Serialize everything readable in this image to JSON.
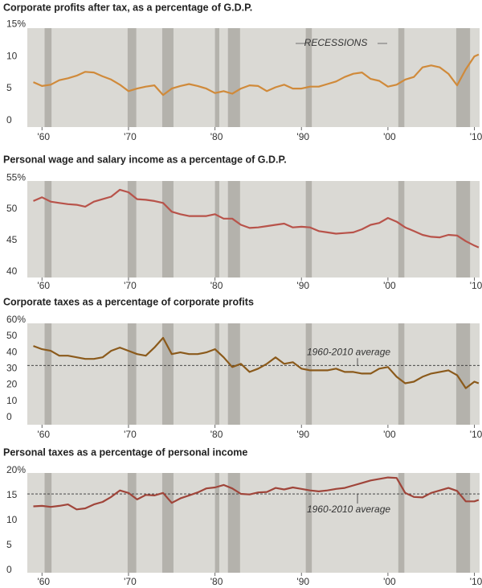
{
  "chart_data": [
    {
      "type": "line",
      "title": "Corporate profits after tax, as a percentage of G.D.P.",
      "annotation": "RECESSIONS",
      "x": [
        1959,
        1960,
        1961,
        1962,
        1963,
        1964,
        1965,
        1966,
        1967,
        1968,
        1969,
        1970,
        1971,
        1972,
        1973,
        1974,
        1975,
        1976,
        1977,
        1978,
        1979,
        1980,
        1981,
        1982,
        1983,
        1984,
        1985,
        1986,
        1987,
        1988,
        1989,
        1990,
        1991,
        1992,
        1993,
        1994,
        1995,
        1996,
        1997,
        1998,
        1999,
        2000,
        2001,
        2002,
        2003,
        2004,
        2005,
        2006,
        2007,
        2008,
        2009,
        2010,
        2010.5
      ],
      "series": [
        {
          "color": "#d08a3a",
          "values": [
            6.0,
            5.4,
            5.6,
            6.3,
            6.6,
            7.0,
            7.6,
            7.5,
            6.9,
            6.4,
            5.6,
            4.6,
            5.0,
            5.3,
            5.5,
            4.0,
            5.0,
            5.4,
            5.7,
            5.4,
            5.0,
            4.3,
            4.6,
            4.2,
            5.0,
            5.5,
            5.4,
            4.6,
            5.2,
            5.6,
            5.0,
            5.0,
            5.3,
            5.3,
            5.7,
            6.1,
            6.8,
            7.3,
            7.5,
            6.5,
            6.2,
            5.3,
            5.6,
            6.4,
            6.8,
            8.3,
            8.6,
            8.3,
            7.3,
            5.5,
            8.0,
            10.0,
            10.3
          ]
        }
      ],
      "recessions": [
        [
          1960.3,
          1961.1
        ],
        [
          1969.9,
          1970.9
        ],
        [
          1973.9,
          1975.2
        ],
        [
          1980.0,
          1980.5
        ],
        [
          1981.5,
          1982.9
        ],
        [
          1990.5,
          1991.2
        ],
        [
          2001.2,
          2001.9
        ],
        [
          2007.9,
          2009.5
        ]
      ],
      "xlim": [
        1958.3,
        2010.6
      ],
      "xticks": [
        {
          "value": 1960,
          "label": "'60"
        },
        {
          "value": 1970,
          "label": "'70"
        },
        {
          "value": 1980,
          "label": "'80"
        },
        {
          "value": 1990,
          "label": "'90"
        },
        {
          "value": 2000,
          "label": "'00"
        },
        {
          "value": 2010,
          "label": "'10"
        }
      ],
      "ylim": [
        -1,
        14.4
      ],
      "yticks": [
        0,
        5,
        10,
        {
          "value": 15,
          "label": "15%"
        }
      ]
    },
    {
      "type": "line",
      "title": "Personal wage and salary income as a percentage of G.D.P.",
      "x": [
        1959,
        1960,
        1961,
        1962,
        1963,
        1964,
        1965,
        1966,
        1967,
        1968,
        1969,
        1970,
        1971,
        1972,
        1973,
        1974,
        1975,
        1976,
        1977,
        1978,
        1979,
        1980,
        1981,
        1982,
        1983,
        1984,
        1985,
        1986,
        1987,
        1988,
        1989,
        1990,
        1991,
        1992,
        1993,
        1994,
        1995,
        1996,
        1997,
        1998,
        1999,
        2000,
        2001,
        2002,
        2003,
        2004,
        2005,
        2006,
        2007,
        2008,
        2009,
        2010,
        2010.5
      ],
      "series": [
        {
          "color": "#b8534a",
          "values": [
            51.3,
            51.9,
            51.2,
            51.0,
            50.8,
            50.7,
            50.4,
            51.2,
            51.6,
            52.0,
            53.1,
            52.7,
            51.6,
            51.5,
            51.3,
            51.0,
            49.6,
            49.2,
            48.9,
            48.9,
            48.9,
            49.2,
            48.5,
            48.5,
            47.5,
            47.0,
            47.1,
            47.3,
            47.5,
            47.7,
            47.1,
            47.2,
            47.1,
            46.5,
            46.3,
            46.1,
            46.2,
            46.3,
            46.8,
            47.5,
            47.8,
            48.6,
            48.0,
            47.1,
            46.5,
            45.9,
            45.6,
            45.5,
            45.9,
            45.8,
            44.9,
            44.2,
            43.9
          ]
        }
      ],
      "recessions": [
        [
          1960.3,
          1961.1
        ],
        [
          1969.9,
          1970.9
        ],
        [
          1973.9,
          1975.2
        ],
        [
          1980.0,
          1980.5
        ],
        [
          1981.5,
          1982.9
        ],
        [
          1990.5,
          1991.2
        ],
        [
          2001.2,
          2001.9
        ],
        [
          2007.9,
          2009.5
        ]
      ],
      "xlim": [
        1958.3,
        2010.6
      ],
      "xticks": [
        {
          "value": 1960,
          "label": "'60"
        },
        {
          "value": 1970,
          "label": "'70"
        },
        {
          "value": 1980,
          "label": "'80"
        },
        {
          "value": 1990,
          "label": "'90"
        },
        {
          "value": 2000,
          "label": "'00"
        },
        {
          "value": 2010,
          "label": "'10"
        }
      ],
      "ylim": [
        39.1,
        54.5
      ],
      "yticks": [
        40,
        45,
        50,
        {
          "value": 55,
          "label": "55%"
        }
      ]
    },
    {
      "type": "line",
      "title": "Corporate taxes as a percentage of corporate profits",
      "average": 32,
      "average_label": "1960-2010 average",
      "x": [
        1959,
        1960,
        1961,
        1962,
        1963,
        1964,
        1965,
        1966,
        1967,
        1968,
        1969,
        1970,
        1971,
        1972,
        1973,
        1974,
        1975,
        1976,
        1977,
        1978,
        1979,
        1980,
        1981,
        1982,
        1983,
        1984,
        1985,
        1986,
        1987,
        1988,
        1989,
        1990,
        1991,
        1992,
        1993,
        1994,
        1995,
        1996,
        1997,
        1998,
        1999,
        2000,
        2001,
        2002,
        2003,
        2004,
        2005,
        2006,
        2007,
        2008,
        2009,
        2010,
        2010.5
      ],
      "series": [
        {
          "color": "#8b5a1b",
          "values": [
            44,
            42,
            41,
            38,
            38,
            37,
            36,
            36,
            37,
            41,
            43,
            41,
            39,
            38,
            43,
            49,
            39,
            40,
            39,
            39,
            40,
            42,
            37,
            31,
            33,
            28,
            30,
            33,
            37,
            33,
            34,
            30,
            29,
            29,
            29,
            30,
            28,
            28,
            27,
            27,
            30,
            31,
            25,
            21,
            22,
            25,
            27,
            28,
            29,
            26,
            18,
            22,
            21
          ]
        }
      ],
      "recessions": [
        [
          1960.3,
          1961.1
        ],
        [
          1969.9,
          1970.9
        ],
        [
          1973.9,
          1975.2
        ],
        [
          1980.0,
          1980.5
        ],
        [
          1981.5,
          1982.9
        ],
        [
          1990.5,
          1991.2
        ],
        [
          2001.2,
          2001.9
        ],
        [
          2007.9,
          2009.5
        ]
      ],
      "xlim": [
        1958.3,
        2010.6
      ],
      "xticks": [
        {
          "value": 1960,
          "label": "'60"
        },
        {
          "value": 1970,
          "label": "'70"
        },
        {
          "value": 1980,
          "label": "'80"
        },
        {
          "value": 1990,
          "label": "'90"
        },
        {
          "value": 2000,
          "label": "'00"
        },
        {
          "value": 2010,
          "label": "'10"
        }
      ],
      "ylim": [
        -4.5,
        57.9
      ],
      "yticks": [
        0,
        10,
        20,
        30,
        40,
        50,
        {
          "value": 60,
          "label": "60%"
        }
      ]
    },
    {
      "type": "line",
      "title": "Personal taxes as a percentage of personal income",
      "average": 15.3,
      "average_label": "1960-2010 average",
      "x": [
        1959,
        1960,
        1961,
        1962,
        1963,
        1964,
        1965,
        1966,
        1967,
        1968,
        1969,
        1970,
        1971,
        1972,
        1973,
        1974,
        1975,
        1976,
        1977,
        1978,
        1979,
        1980,
        1981,
        1982,
        1983,
        1984,
        1985,
        1986,
        1987,
        1988,
        1989,
        1990,
        1991,
        1992,
        1993,
        1994,
        1995,
        1996,
        1997,
        1998,
        1999,
        2000,
        2001,
        2002,
        2003,
        2004,
        2005,
        2006,
        2007,
        2008,
        2009,
        2010,
        2010.5
      ],
      "series": [
        {
          "color": "#a0453a",
          "values": [
            12.8,
            12.9,
            12.7,
            12.9,
            13.2,
            12.2,
            12.4,
            13.2,
            13.7,
            14.7,
            16.0,
            15.5,
            14.2,
            15.1,
            15.0,
            15.5,
            13.5,
            14.4,
            15.0,
            15.6,
            16.4,
            16.6,
            17.1,
            16.4,
            15.3,
            15.2,
            15.6,
            15.7,
            16.5,
            16.2,
            16.6,
            16.3,
            16.0,
            15.8,
            16.0,
            16.3,
            16.5,
            17.0,
            17.5,
            18.0,
            18.3,
            18.6,
            18.5,
            15.5,
            14.7,
            14.6,
            15.5,
            16.0,
            16.5,
            15.9,
            13.8,
            13.8,
            14.1
          ]
        }
      ],
      "recessions": [
        [
          1960.3,
          1961.1
        ],
        [
          1969.9,
          1970.9
        ],
        [
          1973.9,
          1975.2
        ],
        [
          1980.0,
          1980.5
        ],
        [
          1981.5,
          1982.9
        ],
        [
          1990.5,
          1991.2
        ],
        [
          2001.2,
          2001.9
        ],
        [
          2007.9,
          2009.5
        ]
      ],
      "xlim": [
        1958.3,
        2010.6
      ],
      "xticks": [
        {
          "value": 1960,
          "label": "'60"
        },
        {
          "value": 1970,
          "label": "'70"
        },
        {
          "value": 1980,
          "label": "'80"
        },
        {
          "value": 1990,
          "label": "'90"
        },
        {
          "value": 2000,
          "label": "'00"
        },
        {
          "value": 2010,
          "label": "'10"
        }
      ],
      "ylim": [
        -0.5,
        19.5
      ],
      "yticks": [
        0,
        5,
        10,
        15,
        {
          "value": 20,
          "label": "20%"
        }
      ]
    }
  ]
}
